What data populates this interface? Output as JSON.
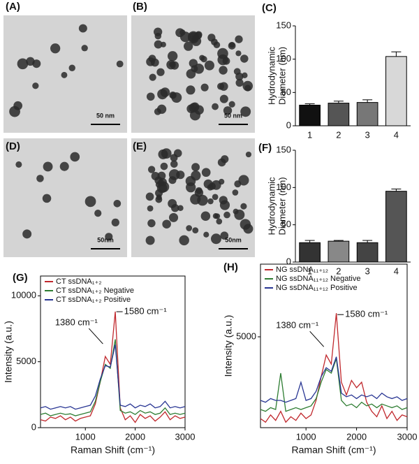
{
  "images": [
    {
      "label": "(A)",
      "scale_bar": "50 nm"
    },
    {
      "label": "(B)",
      "scale_bar": "50 nm"
    },
    {
      "label": "(D)",
      "scale_bar": "50nm"
    },
    {
      "label": "(E)",
      "scale_bar": "50nm"
    }
  ],
  "chart_data": [
    {
      "type": "bar",
      "panel_label": "(C)",
      "y_label": [
        "Hydrodynamic",
        "Diameter (nm)"
      ],
      "categories": [
        "1",
        "2",
        "3",
        "4"
      ],
      "values": [
        31,
        34,
        35,
        104
      ],
      "errors": [
        2,
        3,
        4,
        7
      ],
      "colors": [
        "#111111",
        "#555555",
        "#777777",
        "#d8d8d8"
      ],
      "ylim": [
        0,
        150
      ],
      "yticks": [
        0,
        50,
        100,
        150
      ]
    },
    {
      "type": "bar",
      "panel_label": "(F)",
      "y_label": [
        "Hydrodynamic",
        "Diameter (nm)"
      ],
      "categories": [
        "1",
        "2",
        "3",
        "4"
      ],
      "values": [
        26,
        28,
        26,
        95
      ],
      "errors": [
        3,
        1,
        3,
        3
      ],
      "colors": [
        "#333333",
        "#888888",
        "#444444",
        "#555555"
      ],
      "ylim": [
        0,
        150
      ],
      "yticks": [
        0,
        50,
        100,
        150
      ]
    },
    {
      "type": "line",
      "panel_label": "(G)",
      "y_label": "Intensity (a.u.)",
      "x_label": "Raman Shift (cm⁻¹)",
      "annotations": [
        "1380 cm⁻¹",
        "1580 cm⁻¹"
      ],
      "x": [
        100,
        200,
        300,
        400,
        500,
        600,
        700,
        800,
        900,
        1000,
        1100,
        1200,
        1300,
        1400,
        1500,
        1600,
        1700,
        1800,
        1900,
        2000,
        2100,
        2200,
        2300,
        2400,
        2500,
        2600,
        2700,
        2800,
        2900,
        3000
      ],
      "series": [
        {
          "name": "CT ssDNA₁₊₂",
          "color": "#c0282d",
          "values": [
            600,
            500,
            800,
            700,
            900,
            600,
            800,
            500,
            700,
            800,
            900,
            1800,
            3500,
            5400,
            4800,
            8800,
            1500,
            600,
            900,
            400,
            1000,
            700,
            900,
            500,
            800,
            1200,
            600,
            900,
            700,
            800
          ]
        },
        {
          "name": "CT ssDNA₁₊₂ Negative",
          "color": "#2e7d32",
          "values": [
            1000,
            1100,
            900,
            1000,
            1100,
            1000,
            1050,
            900,
            1000,
            1100,
            1200,
            2000,
            3500,
            4800,
            4500,
            6700,
            1300,
            1100,
            1200,
            1000,
            1300,
            1100,
            1200,
            1000,
            1100,
            1500,
            1000,
            1100,
            1000,
            1100
          ]
        },
        {
          "name": "CT ssDNA₁₊₂ Positive",
          "color": "#283593",
          "values": [
            1500,
            1600,
            1400,
            1500,
            1600,
            1500,
            1600,
            1400,
            1500,
            1600,
            1700,
            2400,
            3700,
            4700,
            4600,
            6300,
            1700,
            1600,
            1800,
            1500,
            1700,
            1600,
            1800,
            1500,
            1600,
            2000,
            1500,
            1600,
            1500,
            1600
          ]
        }
      ],
      "xlim": [
        100,
        3000
      ],
      "xticks": [
        1000,
        2000,
        3000
      ],
      "ylim": [
        0,
        11500
      ],
      "yticks": [
        0,
        5000,
        10000
      ]
    },
    {
      "type": "line",
      "panel_label": "(H)",
      "y_label": "Intensity (a.u.)",
      "x_label": "Raman Shift (cm⁻¹)",
      "annotations": [
        "1380 cm⁻¹",
        "1580 cm⁻¹"
      ],
      "x": [
        100,
        200,
        300,
        400,
        500,
        600,
        700,
        800,
        900,
        1000,
        1100,
        1200,
        1300,
        1400,
        1500,
        1600,
        1700,
        1800,
        1900,
        2000,
        2100,
        2200,
        2300,
        2400,
        2500,
        2600,
        2700,
        2800,
        2900,
        3000
      ],
      "series": [
        {
          "name": "NG ssDNA₁₁₊₁₂",
          "color": "#c0282d",
          "values": [
            500,
            300,
            700,
            400,
            900,
            300,
            600,
            400,
            800,
            500,
            700,
            1500,
            2800,
            4000,
            3500,
            6300,
            2500,
            1800,
            2600,
            2200,
            2500,
            1400,
            900,
            600,
            1200,
            500,
            900,
            400,
            700,
            600
          ]
        },
        {
          "name": "NG ssDNA₁₁₊₁₂ Negative",
          "color": "#2e7d32",
          "values": [
            1000,
            900,
            1100,
            1000,
            3000,
            900,
            1000,
            1100,
            1000,
            1100,
            1200,
            1600,
            2500,
            3200,
            3000,
            3800,
            1500,
            1200,
            1300,
            1100,
            1400,
            1200,
            1300,
            1100,
            1300,
            1200,
            1100,
            1200,
            1000,
            1100
          ]
        },
        {
          "name": "NG ssDNA₁₁₊₁₂ Positive",
          "color": "#283593",
          "values": [
            1500,
            1400,
            1600,
            1500,
            1500,
            1400,
            1500,
            1600,
            2500,
            1500,
            1600,
            2000,
            2800,
            3300,
            3100,
            3900,
            1900,
            1700,
            1800,
            1600,
            1800,
            1700,
            1800,
            1600,
            1900,
            1700,
            1600,
            1700,
            1500,
            1600
          ]
        }
      ],
      "xlim": [
        100,
        3000
      ],
      "xticks": [
        1000,
        2000,
        3000
      ],
      "ylim": [
        0,
        9000
      ],
      "yticks": [
        5000
      ]
    }
  ]
}
